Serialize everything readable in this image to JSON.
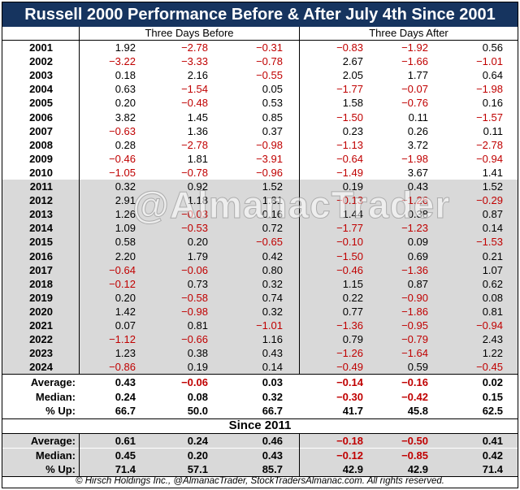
{
  "title": "Russell 2000 Performance Before & After July 4th Since 2001",
  "headers": {
    "before": "Three Days Before",
    "after": "Three Days After"
  },
  "rows": [
    {
      "year": "2001",
      "v": [
        "1.92",
        "−2.78",
        "−0.31",
        "−0.83",
        "−1.92",
        "0.56"
      ]
    },
    {
      "year": "2002",
      "v": [
        "−3.22",
        "−3.33",
        "−0.78",
        "2.67",
        "−1.66",
        "−1.01"
      ]
    },
    {
      "year": "2003",
      "v": [
        "0.18",
        "2.16",
        "−0.55",
        "2.05",
        "1.77",
        "0.64"
      ]
    },
    {
      "year": "2004",
      "v": [
        "0.63",
        "−1.54",
        "0.05",
        "−1.77",
        "−0.07",
        "−1.98"
      ]
    },
    {
      "year": "2005",
      "v": [
        "0.20",
        "−0.48",
        "0.53",
        "1.58",
        "−0.76",
        "0.16"
      ]
    },
    {
      "year": "2006",
      "v": [
        "3.82",
        "1.45",
        "0.85",
        "−1.50",
        "0.11",
        "−1.57"
      ]
    },
    {
      "year": "2007",
      "v": [
        "−0.63",
        "1.36",
        "0.37",
        "0.23",
        "0.26",
        "0.11"
      ]
    },
    {
      "year": "2008",
      "v": [
        "0.28",
        "−2.78",
        "−0.98",
        "−1.13",
        "3.72",
        "−2.78"
      ]
    },
    {
      "year": "2009",
      "v": [
        "−0.46",
        "1.81",
        "−3.91",
        "−0.64",
        "−1.98",
        "−0.94"
      ]
    },
    {
      "year": "2010",
      "v": [
        "−1.05",
        "−0.78",
        "−0.96",
        "−1.49",
        "3.67",
        "1.41"
      ]
    },
    {
      "year": "2011",
      "v": [
        "0.32",
        "0.92",
        "1.52",
        "0.19",
        "0.43",
        "1.52"
      ]
    },
    {
      "year": "2012",
      "v": [
        "2.91",
        "1.18",
        "1.31",
        "−0.13",
        "−1.26",
        "−0.29"
      ]
    },
    {
      "year": "2013",
      "v": [
        "1.26",
        "−0.03",
        "0.16",
        "1.44",
        "0.38",
        "0.87"
      ]
    },
    {
      "year": "2014",
      "v": [
        "1.09",
        "−0.53",
        "0.72",
        "−1.77",
        "−1.23",
        "0.14"
      ]
    },
    {
      "year": "2015",
      "v": [
        "0.58",
        "0.20",
        "−0.65",
        "−0.10",
        "0.09",
        "−1.53"
      ]
    },
    {
      "year": "2016",
      "v": [
        "2.20",
        "1.79",
        "0.42",
        "−1.50",
        "0.69",
        "0.21"
      ]
    },
    {
      "year": "2017",
      "v": [
        "−0.64",
        "−0.06",
        "0.80",
        "−0.46",
        "−1.36",
        "1.07"
      ]
    },
    {
      "year": "2018",
      "v": [
        "−0.12",
        "0.73",
        "0.32",
        "1.15",
        "0.87",
        "0.62"
      ]
    },
    {
      "year": "2019",
      "v": [
        "0.20",
        "−0.58",
        "0.74",
        "0.22",
        "−0.90",
        "0.08"
      ]
    },
    {
      "year": "2020",
      "v": [
        "1.42",
        "−0.98",
        "0.32",
        "0.77",
        "−1.86",
        "0.81"
      ]
    },
    {
      "year": "2021",
      "v": [
        "0.07",
        "0.81",
        "−1.01",
        "−1.36",
        "−0.95",
        "−0.94"
      ]
    },
    {
      "year": "2022",
      "v": [
        "−1.12",
        "−0.66",
        "1.16",
        "0.79",
        "−0.79",
        "2.43"
      ]
    },
    {
      "year": "2023",
      "v": [
        "1.23",
        "0.38",
        "0.43",
        "−1.26",
        "−1.64",
        "1.22"
      ]
    },
    {
      "year": "2024",
      "v": [
        "−0.86",
        "0.19",
        "0.14",
        "−0.49",
        "0.59",
        "−0.45"
      ]
    }
  ],
  "summary_all": [
    {
      "label": "Average:",
      "v": [
        "0.43",
        "−0.06",
        "0.03",
        "−0.14",
        "−0.16",
        "0.02"
      ]
    },
    {
      "label": "Median:",
      "v": [
        "0.24",
        "0.08",
        "0.32",
        "−0.30",
        "−0.42",
        "0.15"
      ]
    },
    {
      "label": "% Up:",
      "v": [
        "66.7",
        "50.0",
        "66.7",
        "41.7",
        "45.8",
        "62.5"
      ]
    }
  ],
  "since_label": "Since 2011",
  "summary_since": [
    {
      "label": "Average:",
      "v": [
        "0.61",
        "0.24",
        "0.46",
        "−0.18",
        "−0.50",
        "0.41"
      ]
    },
    {
      "label": "Median:",
      "v": [
        "0.45",
        "0.20",
        "0.43",
        "−0.12",
        "−0.85",
        "0.42"
      ]
    },
    {
      "label": "% Up:",
      "v": [
        "71.4",
        "57.1",
        "85.7",
        "42.9",
        "42.9",
        "71.4"
      ]
    }
  ],
  "watermark": "@AlmanacTrader",
  "footer": "© Hirsch Holdings Inc., @AlmanacTrader, StockTradersAlmanac.com. All rights reserved.",
  "colors": {
    "title_bg": "#16345f",
    "negative": "#c00000",
    "shade": "#d9d9d9"
  }
}
